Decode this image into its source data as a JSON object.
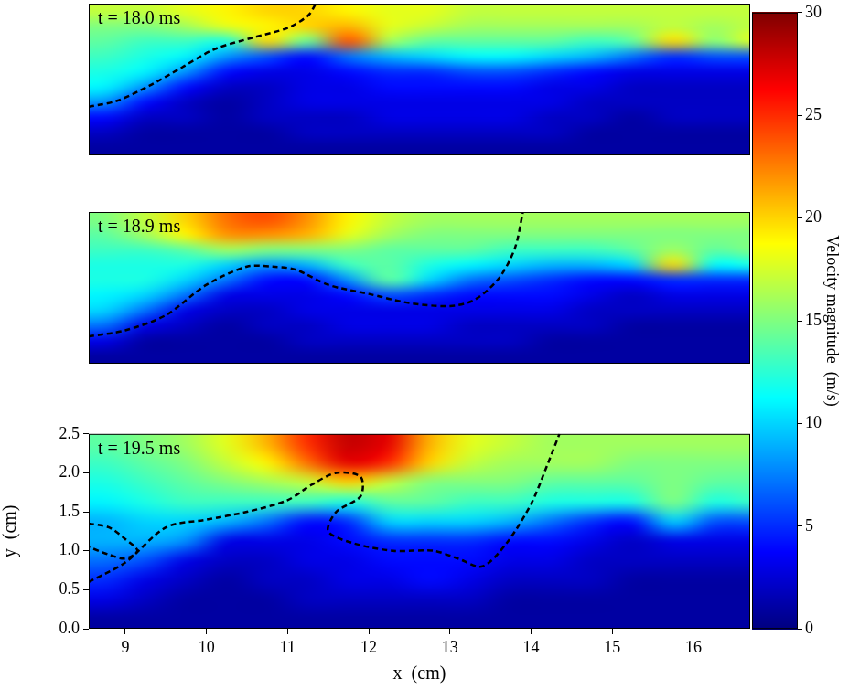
{
  "chart_data": {
    "type": "heatmap",
    "x_label": "x  (cm)",
    "y_label": "y  (cm)",
    "xlim": [
      8.55,
      16.7
    ],
    "xticks": [
      9,
      10,
      11,
      12,
      13,
      14,
      15,
      16
    ],
    "ylim": [
      0,
      2.5
    ],
    "yticks": [
      {
        "value": 0,
        "label": "0.0"
      },
      {
        "value": 0.5,
        "label": "0.5"
      },
      {
        "value": 1,
        "label": "1.0"
      },
      {
        "value": 1.5,
        "label": "1.5"
      },
      {
        "value": 2,
        "label": "2.0"
      },
      {
        "value": 2.5,
        "label": "2.5"
      }
    ],
    "grid": false,
    "colorbar": {
      "label": "Velocity magnitude  (m/s)",
      "lim": [
        0,
        30
      ],
      "ticks": [
        0,
        5,
        10,
        15,
        20,
        25,
        30
      ]
    },
    "x": [
      8.75,
      9.25,
      9.75,
      10.25,
      10.75,
      11.25,
      11.75,
      12.25,
      12.75,
      13.25,
      13.75,
      14.25,
      14.75,
      15.25,
      15.75,
      16.25,
      16.75
    ],
    "y": [
      0.125,
      0.375,
      0.625,
      0.875,
      1.125,
      1.375,
      1.625,
      1.875,
      2.125,
      2.375
    ],
    "panels": [
      {
        "title": "t = 18.0 ms",
        "tick_labels": false,
        "values": [
          [
            1,
            1,
            1,
            1,
            1,
            1,
            1,
            1,
            1,
            1,
            1,
            1,
            1,
            1,
            1,
            1,
            1
          ],
          [
            2,
            1,
            1,
            1,
            1,
            2,
            2,
            2,
            2,
            2,
            2,
            2,
            1,
            1,
            1,
            1,
            1
          ],
          [
            4,
            2,
            2,
            1,
            2,
            2,
            2,
            3,
            3,
            3,
            3,
            2,
            2,
            1,
            2,
            2,
            2
          ],
          [
            8,
            4,
            2,
            1,
            2,
            3,
            3,
            3,
            3,
            3,
            3,
            3,
            2,
            2,
            2,
            2,
            2
          ],
          [
            11,
            8,
            4,
            2,
            2,
            3,
            3,
            4,
            4,
            4,
            4,
            3,
            3,
            2,
            2,
            2,
            2
          ],
          [
            12,
            11,
            8,
            4,
            3,
            3,
            4,
            5,
            5,
            6,
            6,
            5,
            4,
            3,
            3,
            3,
            3
          ],
          [
            13,
            12,
            11,
            8,
            6,
            4,
            7,
            9,
            10,
            11,
            11,
            10,
            9,
            7,
            5,
            6,
            6
          ],
          [
            14,
            13,
            13,
            12,
            20,
            14,
            24,
            16,
            14,
            14,
            14,
            14,
            13,
            14,
            20,
            15,
            18
          ],
          [
            15,
            15,
            16,
            18,
            19,
            20,
            21,
            18,
            17,
            16,
            16,
            16,
            16,
            16,
            17,
            16,
            17
          ],
          [
            17,
            17,
            18,
            19,
            20,
            20,
            19,
            18,
            18,
            17,
            17,
            17,
            17,
            17,
            17,
            17,
            17
          ]
        ],
        "series": [
          {
            "type": "line",
            "color": "#000000",
            "line_style": "dashed",
            "x": [
              8.55,
              8.9,
              9.3,
              9.7,
              10.1,
              10.6,
              11.0,
              11.25,
              11.35
            ],
            "y": [
              0.8,
              0.9,
              1.15,
              1.45,
              1.75,
              1.95,
              2.1,
              2.3,
              2.5
            ]
          }
        ]
      },
      {
        "title": "t = 18.9 ms",
        "tick_labels": false,
        "values": [
          [
            1,
            1,
            1,
            1,
            1,
            1,
            1,
            1,
            1,
            1,
            1,
            1,
            1,
            1,
            1,
            1,
            1
          ],
          [
            3,
            1,
            1,
            1,
            1,
            2,
            2,
            2,
            2,
            2,
            2,
            1,
            1,
            1,
            1,
            1,
            1
          ],
          [
            7,
            3,
            2,
            1,
            2,
            2,
            3,
            3,
            3,
            2,
            2,
            2,
            2,
            1,
            1,
            1,
            1
          ],
          [
            10,
            7,
            3,
            2,
            2,
            3,
            3,
            3,
            3,
            3,
            3,
            3,
            2,
            2,
            2,
            2,
            2
          ],
          [
            11,
            10,
            7,
            3,
            3,
            3,
            4,
            6,
            5,
            4,
            4,
            4,
            3,
            2,
            3,
            3,
            3
          ],
          [
            12,
            12,
            10,
            7,
            4,
            4,
            8,
            14,
            10,
            7,
            6,
            5,
            4,
            4,
            5,
            5,
            5
          ],
          [
            12,
            12,
            12,
            10,
            8,
            9,
            13,
            14,
            12,
            11,
            10,
            9,
            9,
            10,
            20,
            11,
            12
          ],
          [
            13,
            13,
            14,
            16,
            15,
            15,
            15,
            14,
            14,
            14,
            13,
            13,
            13,
            14,
            16,
            14,
            15
          ],
          [
            14,
            16,
            19,
            22,
            22,
            21,
            18,
            16,
            15,
            15,
            15,
            15,
            15,
            15,
            15,
            15,
            15
          ],
          [
            15,
            17,
            20,
            23,
            24,
            22,
            19,
            17,
            16,
            16,
            16,
            16,
            16,
            16,
            16,
            16,
            16
          ]
        ],
        "series": [
          {
            "type": "line",
            "color": "#000000",
            "line_style": "dashed",
            "x": [
              8.55,
              9.0,
              9.5,
              10.0,
              10.5,
              10.8,
              11.1,
              11.5,
              12.0,
              12.5,
              13.0,
              13.3,
              13.6,
              13.8,
              13.9
            ],
            "y": [
              0.45,
              0.55,
              0.8,
              1.3,
              1.6,
              1.6,
              1.55,
              1.3,
              1.15,
              1.0,
              0.95,
              1.05,
              1.4,
              1.9,
              2.5
            ]
          }
        ]
      },
      {
        "title": "t = 19.5 ms",
        "values": [
          [
            1,
            1,
            1,
            1,
            1,
            1,
            1,
            1,
            1,
            1,
            1,
            1,
            1,
            1,
            1,
            1,
            1
          ],
          [
            3,
            2,
            1,
            1,
            1,
            2,
            2,
            2,
            2,
            2,
            1,
            1,
            1,
            1,
            1,
            1,
            1
          ],
          [
            5,
            3,
            2,
            1,
            2,
            2,
            3,
            3,
            4,
            3,
            2,
            2,
            2,
            1,
            1,
            1,
            1
          ],
          [
            7,
            6,
            3,
            2,
            2,
            3,
            3,
            4,
            4,
            4,
            3,
            3,
            2,
            2,
            2,
            2,
            2
          ],
          [
            9,
            9,
            8,
            3,
            3,
            3,
            4,
            5,
            5,
            5,
            4,
            4,
            3,
            2,
            3,
            3,
            3
          ],
          [
            9,
            10,
            10,
            9,
            7,
            4,
            5,
            10,
            10,
            10,
            9,
            7,
            5,
            4,
            10,
            6,
            6
          ],
          [
            11,
            12,
            13,
            13,
            13,
            13,
            12,
            14,
            14,
            13,
            13,
            12,
            12,
            12,
            15,
            12,
            13
          ],
          [
            12,
            13,
            14,
            15,
            16,
            17,
            20,
            17,
            15,
            15,
            15,
            14,
            14,
            14,
            15,
            14,
            14
          ],
          [
            13,
            14,
            15,
            17,
            19,
            23,
            27,
            25,
            20,
            17,
            16,
            16,
            16,
            15,
            15,
            15,
            15
          ],
          [
            14,
            15,
            16,
            18,
            21,
            25,
            28,
            27,
            21,
            18,
            17,
            16,
            16,
            16,
            16,
            16,
            16
          ]
        ],
        "series": [
          {
            "type": "line",
            "color": "#000000",
            "line_style": "dashed",
            "x": [
              8.55,
              8.8,
              9.0,
              9.15,
              9.0,
              8.8,
              8.55
            ],
            "y": [
              1.35,
              1.3,
              1.15,
              1.0,
              0.9,
              0.95,
              1.05
            ]
          },
          {
            "type": "line",
            "color": "#000000",
            "line_style": "dashed",
            "x": [
              8.55,
              9.0,
              9.5,
              10.0,
              10.5,
              11.0,
              11.3,
              11.6,
              11.9,
              11.9,
              11.6,
              11.5,
              11.8,
              12.3,
              12.8,
              13.1,
              13.4,
              13.7,
              14.0,
              14.2,
              14.35
            ],
            "y": [
              0.6,
              0.85,
              1.3,
              1.4,
              1.5,
              1.65,
              1.85,
              2.0,
              1.95,
              1.7,
              1.5,
              1.25,
              1.1,
              1.0,
              1.0,
              0.9,
              0.8,
              1.1,
              1.6,
              2.1,
              2.5
            ]
          }
        ]
      }
    ]
  }
}
